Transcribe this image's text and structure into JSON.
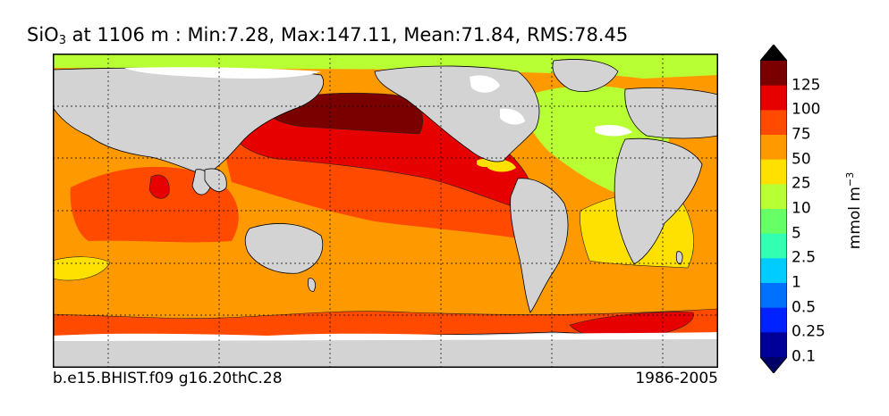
{
  "title": {
    "var": "SiO",
    "sub": "3",
    "rest": " at 1106 m : Min:7.28, Max:147.11, Mean:71.84, RMS:78.45"
  },
  "footer": {
    "case": "b.e15.BHIST.f09 g16.20thC.28",
    "years": "1986-2005"
  },
  "colorbar": {
    "units": "mmol m",
    "units_exp": "−3",
    "labels": [
      "125",
      "100",
      "75",
      "50",
      "25",
      "10",
      "5",
      "2.5",
      "1",
      "0.5",
      "0.25",
      "0.1"
    ],
    "colors": [
      "#7a0000",
      "#e60000",
      "#ff4a00",
      "#ff9900",
      "#ffe100",
      "#b8ff33",
      "#66ff66",
      "#33ffb2",
      "#00ccff",
      "#0070ff",
      "#0022ff",
      "#000099"
    ],
    "under_color": "#000066",
    "over_color": "#000000"
  },
  "map": {
    "land_color": "#d3d3d3",
    "nodata_color": "#ffffff"
  }
}
